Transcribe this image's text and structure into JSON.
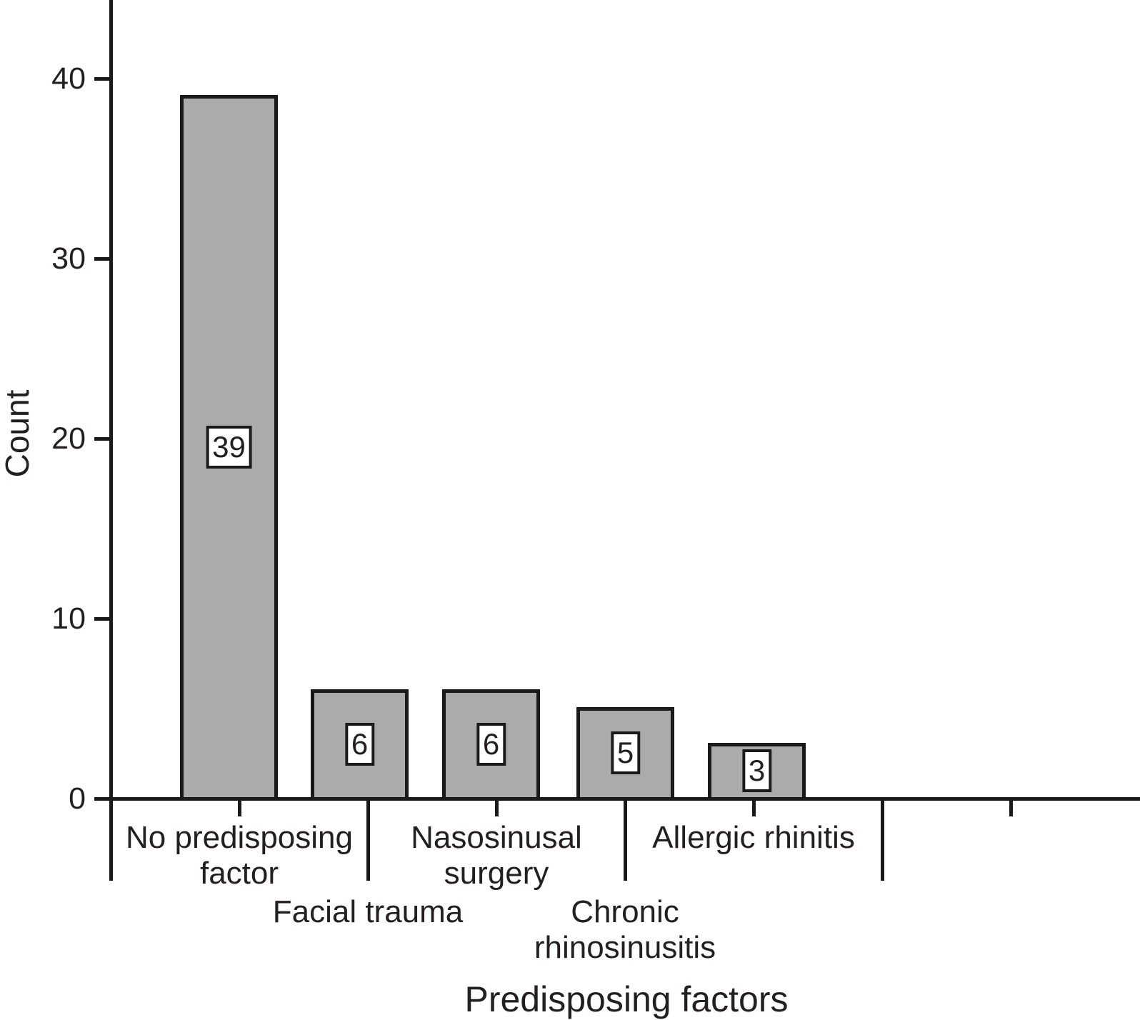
{
  "chart_data": {
    "type": "bar",
    "title": "",
    "xlabel": "Predisposing factors",
    "ylabel": "Count",
    "categories": [
      "No predisposing factor",
      "Facial trauma",
      "Nasosinusal surgery",
      "Chronic rhinosinusitis",
      "Allergic rhinitis"
    ],
    "values": [
      39,
      6,
      6,
      5,
      3
    ],
    "bar_value_labels": [
      "39",
      "6",
      "6",
      "5",
      "3"
    ],
    "category_label_lines": [
      [
        "No predisposing",
        "factor"
      ],
      [
        "Facial trauma"
      ],
      [
        "Nasosinusal",
        "surgery"
      ],
      [
        "Chronic",
        "rhinosinusitis"
      ],
      [
        "Allergic rhinitis"
      ]
    ],
    "category_label_row": [
      1,
      2,
      1,
      2,
      1
    ],
    "yticks": [
      0,
      10,
      20,
      30,
      40
    ],
    "ylim": [
      0,
      44
    ],
    "grid": false,
    "legend": null,
    "extra_empty_tick_count": 2,
    "bar_fill_color": "#ababab",
    "line_color": "#1a1a1a",
    "text_color": "#231f20",
    "value_label_box_color": "#ffffff"
  }
}
